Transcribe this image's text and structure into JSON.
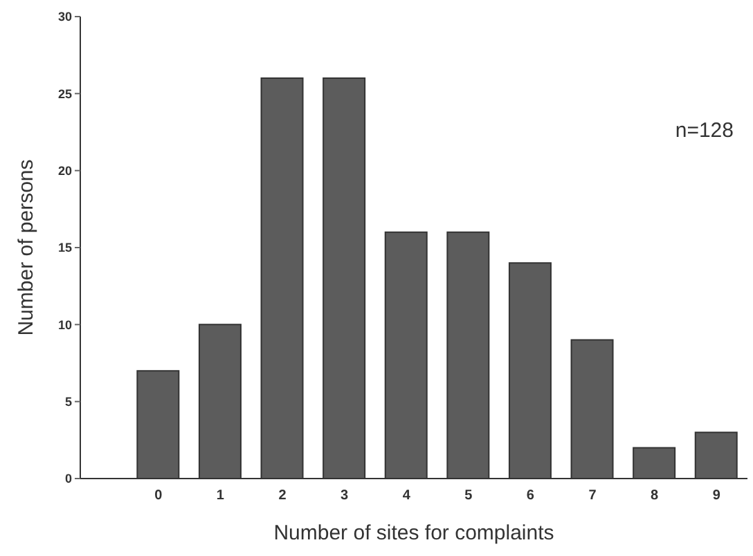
{
  "chart_data": {
    "type": "bar",
    "xlabel": "Number of sites for complaints",
    "ylabel": "Number of persons",
    "categories": [
      "0",
      "1",
      "2",
      "3",
      "4",
      "5",
      "6",
      "7",
      "8",
      "9"
    ],
    "values": [
      7,
      10,
      26,
      26,
      16,
      16,
      14,
      9,
      2,
      3
    ],
    "color": "#5c5c5c",
    "ylim": [
      0,
      30
    ],
    "yticks": [
      0,
      5,
      10,
      15,
      20,
      25,
      30
    ],
    "grid": false,
    "legend": false,
    "annotations": [
      "n=128"
    ]
  }
}
